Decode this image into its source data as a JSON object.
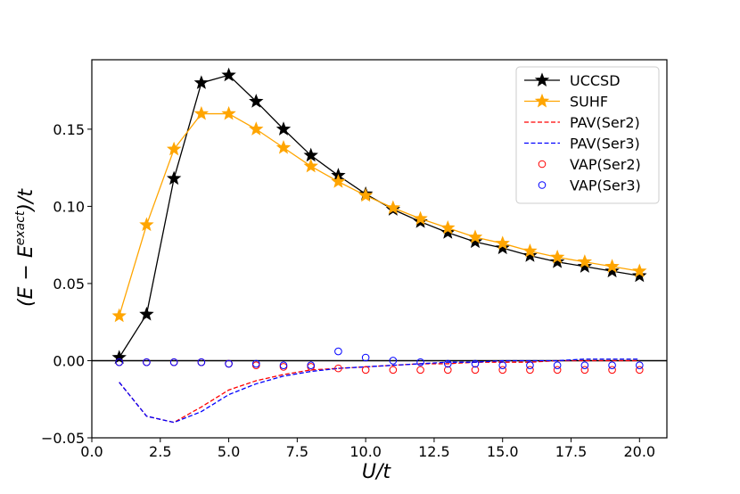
{
  "chart_data": {
    "type": "line",
    "title": "",
    "xlabel_main": "U/t",
    "ylabel_main": "(E − E",
    "ylabel_sup": "exact",
    "ylabel_tail": ")/t",
    "xlim": [
      0.0,
      21.0
    ],
    "ylim": [
      -0.05,
      0.195
    ],
    "xticks": [
      0.0,
      2.5,
      5.0,
      7.5,
      10.0,
      12.5,
      15.0,
      17.5,
      20.0
    ],
    "xtick_labels": [
      "0.0",
      "2.5",
      "5.0",
      "7.5",
      "10.0",
      "12.5",
      "15.0",
      "17.5",
      "20.0"
    ],
    "yticks": [
      -0.05,
      0.0,
      0.05,
      0.1,
      0.15
    ],
    "ytick_labels": [
      "−0.05",
      "0.00",
      "0.05",
      "0.10",
      "0.15"
    ],
    "hline": 0.0,
    "legend_position": "top-right",
    "x": [
      1,
      2,
      3,
      4,
      5,
      6,
      7,
      8,
      9,
      10,
      11,
      12,
      13,
      14,
      15,
      16,
      17,
      18,
      19,
      20
    ],
    "series": [
      {
        "name": "UCCSD",
        "style": "line-star",
        "color": "#000000",
        "values": [
          0.002,
          0.03,
          0.118,
          0.18,
          0.185,
          0.168,
          0.15,
          0.133,
          0.12,
          0.108,
          0.098,
          0.09,
          0.083,
          0.077,
          0.073,
          0.068,
          0.064,
          0.061,
          0.058,
          0.055
        ]
      },
      {
        "name": "SUHF",
        "style": "line-star",
        "color": "#FFA500",
        "values": [
          0.029,
          0.088,
          0.137,
          0.16,
          0.16,
          0.15,
          0.138,
          0.126,
          0.116,
          0.107,
          0.099,
          0.092,
          0.086,
          0.08,
          0.076,
          0.071,
          0.067,
          0.064,
          0.061,
          0.058
        ]
      },
      {
        "name": "PAV(Ser2)",
        "style": "dashed",
        "color": "#FF0000",
        "values": [
          -0.014,
          -0.036,
          -0.04,
          -0.03,
          -0.019,
          -0.013,
          -0.009,
          -0.006,
          -0.005,
          -0.004,
          -0.003,
          -0.002,
          -0.002,
          -0.001,
          -0.001,
          -0.001,
          0.0,
          0.0,
          0.0,
          0.0
        ]
      },
      {
        "name": "PAV(Ser3)",
        "style": "dashed",
        "color": "#0000FF",
        "values": [
          -0.014,
          -0.036,
          -0.04,
          -0.033,
          -0.022,
          -0.015,
          -0.01,
          -0.007,
          -0.005,
          -0.004,
          -0.003,
          -0.002,
          -0.001,
          -0.001,
          0.0,
          0.0,
          0.0,
          0.001,
          0.001,
          0.001
        ]
      },
      {
        "name": "VAP(Ser2)",
        "style": "circle",
        "color": "#FF0000",
        "values": [
          -0.001,
          -0.001,
          -0.001,
          -0.001,
          -0.002,
          -0.003,
          -0.004,
          -0.004,
          -0.005,
          -0.006,
          -0.006,
          -0.006,
          -0.006,
          -0.006,
          -0.006,
          -0.006,
          -0.006,
          -0.006,
          -0.006,
          -0.006
        ]
      },
      {
        "name": "VAP(Ser3)",
        "style": "circle",
        "color": "#0000FF",
        "values": [
          -0.001,
          -0.001,
          -0.001,
          -0.001,
          -0.002,
          -0.002,
          -0.003,
          -0.003,
          0.006,
          0.002,
          0.0,
          -0.001,
          -0.002,
          -0.002,
          -0.003,
          -0.003,
          -0.003,
          -0.003,
          -0.003,
          -0.003
        ]
      }
    ]
  }
}
